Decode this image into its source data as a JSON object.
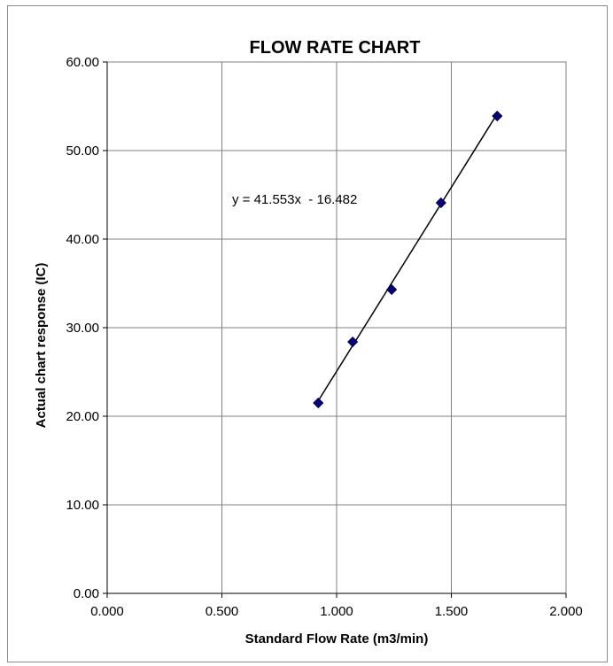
{
  "chart_data": {
    "type": "scatter",
    "title": "FLOW RATE CHART",
    "xlabel": "Standard Flow Rate (m3/min)",
    "ylabel": "Actual chart response (IC)",
    "xlim": [
      0,
      2
    ],
    "ylim": [
      0,
      60
    ],
    "x_ticks": [
      "0.000",
      "0.500",
      "1.000",
      "1.500",
      "2.000"
    ],
    "y_ticks": [
      "0.00",
      "10.00",
      "20.00",
      "30.00",
      "40.00",
      "50.00",
      "60.00"
    ],
    "x_tick_values": [
      0,
      0.5,
      1.0,
      1.5,
      2.0
    ],
    "y_tick_values": [
      0,
      10,
      20,
      30,
      40,
      50,
      60
    ],
    "grid": true,
    "legend": "none",
    "series": [
      {
        "marker": "diamond",
        "color": "#000080",
        "points": [
          {
            "x": 0.92,
            "y": 21.5
          },
          {
            "x": 1.07,
            "y": 28.4
          },
          {
            "x": 1.24,
            "y": 34.3
          },
          {
            "x": 1.455,
            "y": 44.1
          },
          {
            "x": 1.7,
            "y": 53.9
          }
        ]
      }
    ],
    "trendline": {
      "type": "linear",
      "slope": 41.553,
      "intercept": -16.482,
      "x_range": [
        0.92,
        1.7
      ],
      "color": "#000000",
      "equation_label": "y = 41.553x  - 16.482"
    }
  }
}
